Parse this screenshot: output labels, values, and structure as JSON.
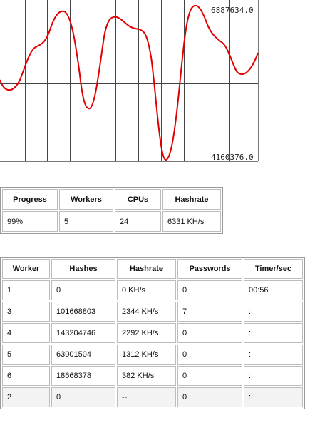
{
  "graph": {
    "max_label": "6887634.0",
    "min_label": "4160376.0",
    "line_color": "#e00000",
    "grid_color": "#444444"
  },
  "summary": {
    "headers": [
      "Progress",
      "Workers",
      "CPUs",
      "Hashrate"
    ],
    "values": [
      "99%",
      "5",
      "24",
      "6331 KH/s"
    ]
  },
  "workers": {
    "headers": [
      "Worker",
      "Hashes",
      "Hashrate",
      "Passwords",
      "Timer/sec"
    ],
    "rows": [
      [
        "1",
        "0",
        "0 KH/s",
        "0",
        "00:56"
      ],
      [
        "3",
        "101668803",
        "2344 KH/s",
        "7",
        ":"
      ],
      [
        "4",
        "143204746",
        "2292 KH/s",
        "0",
        ":"
      ],
      [
        "5",
        "63001504",
        "1312 KH/s",
        "0",
        ":"
      ],
      [
        "6",
        "18668378",
        "382 KH/s",
        "0",
        ":"
      ],
      [
        "2",
        "0",
        "--",
        "0",
        ":"
      ]
    ]
  }
}
